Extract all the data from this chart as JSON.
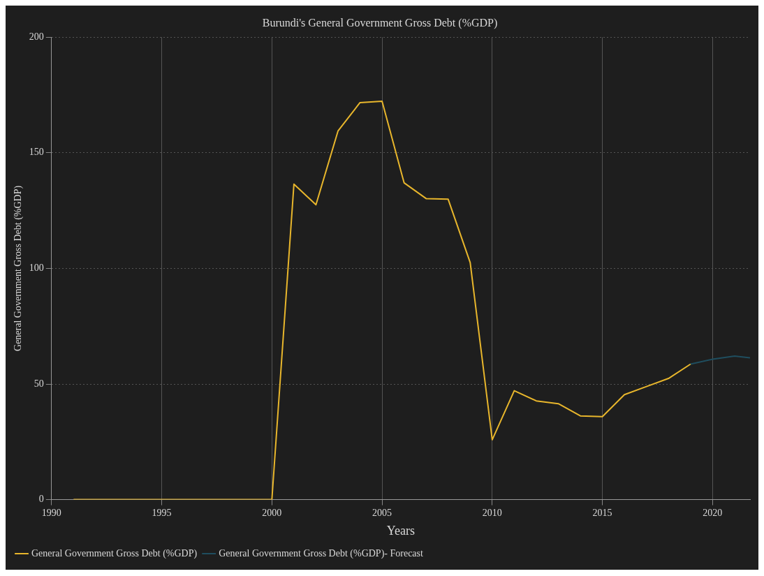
{
  "chart_data": {
    "type": "line",
    "title": "Burundi's General Government Gross Debt (%GDP)",
    "xlabel": "Years",
    "ylabel": "General Government Gross Debt (%GDP)",
    "xlim": [
      1990,
      2021.7
    ],
    "xticks": [
      1990,
      1995,
      2000,
      2005,
      2010,
      2015,
      2020
    ],
    "ylim": [
      0,
      200
    ],
    "yticks": [
      0,
      50,
      100,
      150,
      200
    ],
    "grid": true,
    "legend": "bottom",
    "marker": "none",
    "line_style": "solid",
    "series": [
      {
        "name": "General Government Gross Debt (%GDP)",
        "color": "#e8b62c",
        "x": [
          1991,
          1992,
          1993,
          1994,
          1995,
          1996,
          1997,
          1998,
          1999,
          2000,
          2001,
          2002,
          2003,
          2004,
          2005,
          2006,
          2007,
          2008,
          2009,
          2010,
          2011,
          2012,
          2013,
          2014,
          2015,
          2016,
          2017,
          2018,
          2019
        ],
        "values": [
          0,
          0,
          0,
          0,
          0,
          0,
          0,
          0,
          0,
          0,
          136.4,
          127.5,
          159.4,
          171.7,
          172.3,
          137,
          130.2,
          129.9,
          102.5,
          25.9,
          47.1,
          42.7,
          41.5,
          36.2,
          35.9,
          45.4,
          48.9,
          52.4,
          58.6
        ]
      },
      {
        "name": "General Government Gross Debt (%GDP)- Forecast",
        "color": "#1f4e5f",
        "x": [
          2019,
          2020,
          2021,
          2021.7
        ],
        "values": [
          58.6,
          60.7,
          62.1,
          61.3
        ]
      }
    ]
  }
}
